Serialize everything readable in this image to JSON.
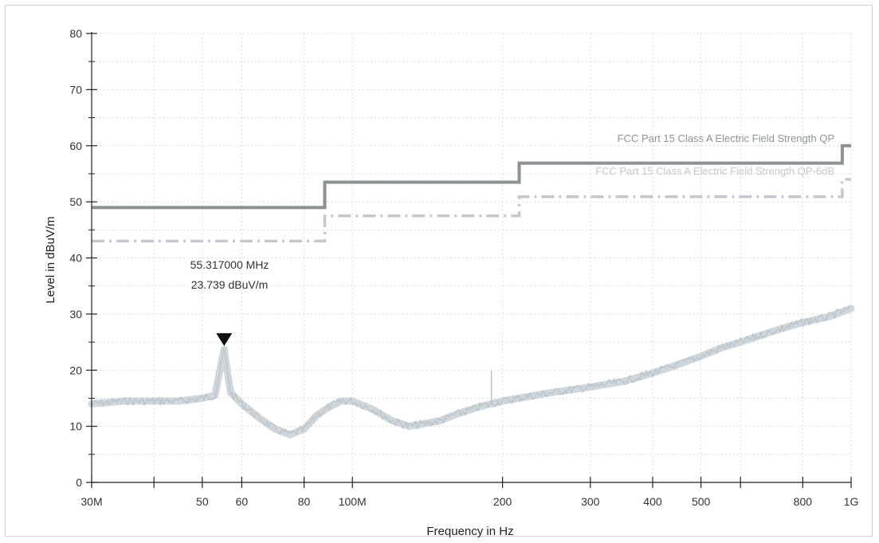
{
  "chart_data": {
    "type": "line",
    "xlabel": "Frequency in Hz",
    "ylabel": "Level in dBuV/m",
    "x_scale": "log",
    "xlim": [
      30,
      1000
    ],
    "ylim": [
      0,
      80
    ],
    "grid": true,
    "y_ticks": [
      0,
      10,
      20,
      30,
      40,
      50,
      60,
      70,
      80
    ],
    "x_ticks": [
      {
        "value": 30,
        "label": "30M"
      },
      {
        "value": 40,
        "label": ""
      },
      {
        "value": 50,
        "label": "50"
      },
      {
        "value": 60,
        "label": "60"
      },
      {
        "value": 80,
        "label": "80"
      },
      {
        "value": 100,
        "label": "100M"
      },
      {
        "value": 200,
        "label": "200"
      },
      {
        "value": 300,
        "label": "300"
      },
      {
        "value": 400,
        "label": "400"
      },
      {
        "value": 500,
        "label": "500"
      },
      {
        "value": 600,
        "label": ""
      },
      {
        "value": 800,
        "label": "800"
      },
      {
        "value": 1000,
        "label": "1G"
      }
    ],
    "series": [
      {
        "name": "FCC Part 15 Class A  Electric Field Strength QP",
        "color": "#8c9196",
        "style": "solid",
        "x": [
          30,
          88,
          88,
          216,
          216,
          960,
          960,
          1000
        ],
        "y": [
          49,
          49,
          53.5,
          53.5,
          56.9,
          56.9,
          60,
          60
        ]
      },
      {
        "name": "FCC Part 15 Class A  Electric Field Strength QP-6dB",
        "color": "#c4c8cc",
        "style": "dashdot",
        "x": [
          30,
          88,
          88,
          216,
          216,
          960,
          960,
          1000
        ],
        "y": [
          43,
          43,
          47.5,
          47.5,
          50.9,
          50.9,
          54,
          54
        ]
      },
      {
        "name": "",
        "color": "#c8d0d6",
        "style": "noise",
        "x": [
          30,
          35,
          40,
          45,
          50,
          53,
          55.3,
          57,
          60,
          65,
          70,
          75,
          80,
          85,
          90,
          95,
          100,
          110,
          120,
          130,
          140,
          150,
          160,
          180,
          200,
          250,
          300,
          350,
          400,
          450,
          500,
          550,
          600,
          700,
          800,
          900,
          1000
        ],
        "y": [
          14,
          14.5,
          14.5,
          14.5,
          15,
          15.5,
          23.7,
          16,
          14,
          11.5,
          9.5,
          8.5,
          9.5,
          12,
          13.5,
          14.5,
          14.5,
          13,
          11,
          10,
          10.5,
          11,
          12,
          13.5,
          14.5,
          16,
          17,
          18,
          19.5,
          21,
          22.5,
          24,
          25,
          27,
          28.5,
          29.5,
          31
        ]
      }
    ],
    "marker": {
      "x": 55.317,
      "y": 23.739,
      "freq_label": "55.317000 MHz",
      "level_label": "23.739 dBuV/m"
    },
    "spur": {
      "x": 190,
      "y": 20
    }
  }
}
